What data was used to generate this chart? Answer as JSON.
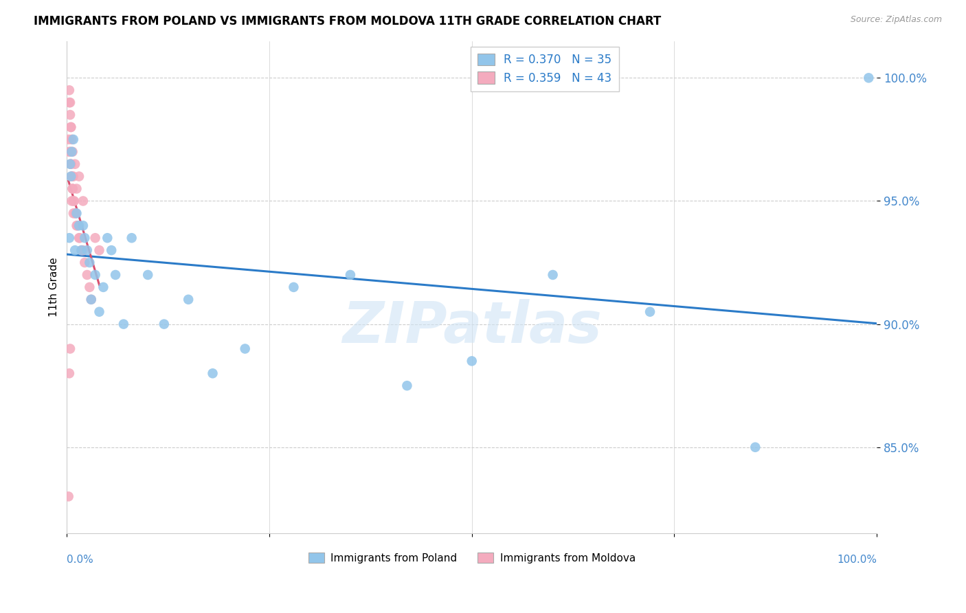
{
  "title": "IMMIGRANTS FROM POLAND VS IMMIGRANTS FROM MOLDOVA 11TH GRADE CORRELATION CHART",
  "source": "Source: ZipAtlas.com",
  "ylabel": "11th Grade",
  "ytick_values": [
    85.0,
    90.0,
    95.0,
    100.0
  ],
  "xlim": [
    0.0,
    100.0
  ],
  "ylim": [
    81.5,
    101.5
  ],
  "legend_R_poland": "R = 0.370",
  "legend_N_poland": "N = 35",
  "legend_R_moldova": "R = 0.359",
  "legend_N_moldova": "N = 43",
  "poland_color": "#92C5EA",
  "moldova_color": "#F4ABBE",
  "poland_line_color": "#2B7BC8",
  "moldova_line_color": "#D94F6E",
  "poland_x": [
    0.3,
    0.5,
    0.4,
    0.6,
    0.8,
    1.0,
    1.2,
    1.5,
    1.8,
    2.0,
    2.2,
    2.5,
    2.8,
    3.0,
    3.5,
    4.0,
    4.5,
    5.0,
    5.5,
    6.0,
    7.0,
    8.0,
    10.0,
    12.0,
    15.0,
    18.0,
    22.0,
    28.0,
    35.0,
    42.0,
    50.0,
    60.0,
    72.0,
    85.0,
    99.0
  ],
  "poland_y": [
    93.5,
    96.0,
    96.5,
    97.0,
    97.5,
    93.0,
    94.5,
    94.0,
    93.0,
    94.0,
    93.5,
    93.0,
    92.5,
    91.0,
    92.0,
    90.5,
    91.5,
    93.5,
    93.0,
    92.0,
    90.0,
    93.5,
    92.0,
    90.0,
    91.0,
    88.0,
    89.0,
    91.5,
    92.0,
    87.5,
    88.5,
    92.0,
    90.5,
    85.0,
    100.0
  ],
  "moldova_x": [
    0.2,
    0.3,
    0.4,
    0.5,
    0.6,
    0.7,
    0.8,
    0.9,
    1.0,
    1.1,
    1.2,
    1.3,
    1.5,
    1.6,
    1.8,
    2.0,
    2.2,
    2.5,
    2.8,
    3.0,
    0.5,
    0.6,
    0.7,
    0.8,
    1.0,
    1.2,
    1.5,
    2.0,
    0.3,
    0.4,
    0.5,
    0.3,
    0.4,
    3.5,
    4.0,
    0.6,
    0.7,
    0.8,
    0.5,
    0.6,
    0.3,
    0.4,
    0.2
  ],
  "moldova_y": [
    97.5,
    97.0,
    97.0,
    96.5,
    96.0,
    95.5,
    95.0,
    95.0,
    94.5,
    94.5,
    94.0,
    94.0,
    93.5,
    93.5,
    93.0,
    93.0,
    92.5,
    92.0,
    91.5,
    91.0,
    98.0,
    97.5,
    97.0,
    96.0,
    96.5,
    95.5,
    96.0,
    95.0,
    99.0,
    98.5,
    98.0,
    99.5,
    99.0,
    93.5,
    93.0,
    95.0,
    95.5,
    94.5,
    96.5,
    96.0,
    88.0,
    89.0,
    83.0
  ]
}
